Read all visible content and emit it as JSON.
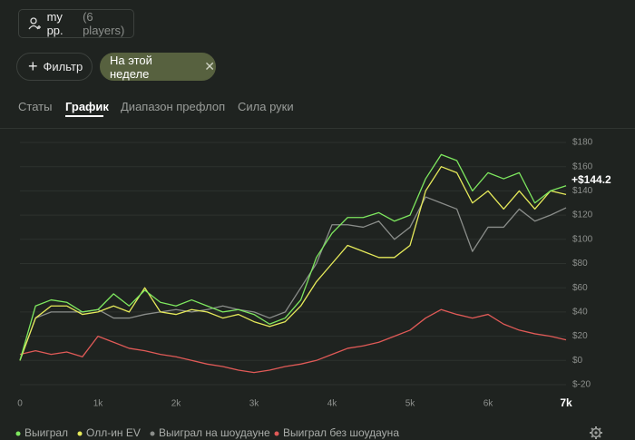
{
  "header": {
    "player_button": {
      "name": "my pp.",
      "count": "(6 players)"
    },
    "filter_button": "Фильтр",
    "period_chip": "На этой неделе"
  },
  "tabs": [
    "Статы",
    "График",
    "Диапазон префлоп",
    "Сила руки"
  ],
  "chart_data": {
    "type": "line",
    "annotation": "+$144.2",
    "x": [
      0,
      200,
      400,
      600,
      800,
      1000,
      1200,
      1400,
      1600,
      1800,
      2000,
      2200,
      2400,
      2600,
      2800,
      3000,
      3200,
      3400,
      3600,
      3800,
      4000,
      4200,
      4400,
      4600,
      4800,
      5000,
      5200,
      5400,
      5600,
      5800,
      6000,
      6200,
      6400,
      6600,
      6800,
      7000
    ],
    "xlim": [
      0,
      7000
    ],
    "xticks": [
      0,
      {
        "value": 1000,
        "label": "1k"
      },
      {
        "value": 2000,
        "label": "2k"
      },
      {
        "value": 3000,
        "label": "3k"
      },
      {
        "value": 4000,
        "label": "4k"
      },
      {
        "value": 5000,
        "label": "5k"
      },
      {
        "value": 6000,
        "label": "6k"
      },
      {
        "value": 7000,
        "label": "7k"
      }
    ],
    "ylim": [
      -20,
      180
    ],
    "yticks": [
      {
        "value": -20,
        "label": "$-20"
      },
      {
        "value": 0,
        "label": "$0"
      },
      {
        "value": 20,
        "label": "$20"
      },
      {
        "value": 40,
        "label": "$40"
      },
      {
        "value": 60,
        "label": "$60"
      },
      {
        "value": 80,
        "label": "$80"
      },
      {
        "value": 100,
        "label": "$100"
      },
      {
        "value": 120,
        "label": "$120"
      },
      {
        "value": 140,
        "label": "$140"
      },
      {
        "value": 160,
        "label": "$160"
      },
      {
        "value": 180,
        "label": "$180"
      }
    ],
    "grid": true,
    "series": [
      {
        "name": "Выиграл",
        "color": "#7ee85f",
        "values": [
          0,
          45,
          50,
          48,
          40,
          42,
          55,
          45,
          58,
          48,
          45,
          50,
          45,
          40,
          42,
          38,
          30,
          35,
          50,
          85,
          105,
          118,
          118,
          122,
          115,
          120,
          150,
          170,
          165,
          140,
          155,
          150,
          155,
          130,
          140,
          144.2
        ]
      },
      {
        "name": "Олл-ин EV",
        "color": "#e6ea5a",
        "values": [
          0,
          35,
          45,
          45,
          38,
          40,
          45,
          40,
          60,
          40,
          38,
          42,
          40,
          35,
          38,
          32,
          28,
          32,
          45,
          65,
          80,
          95,
          90,
          85,
          85,
          95,
          140,
          160,
          155,
          130,
          140,
          125,
          140,
          125,
          140,
          137
        ]
      },
      {
        "name": "Выиграл на шоудауне",
        "color": "#8a8d8a",
        "values": [
          0,
          35,
          40,
          40,
          40,
          42,
          35,
          35,
          38,
          40,
          42,
          40,
          42,
          45,
          42,
          40,
          35,
          40,
          60,
          80,
          112,
          112,
          110,
          115,
          100,
          110,
          135,
          130,
          125,
          90,
          110,
          110,
          125,
          115,
          120,
          126
        ]
      },
      {
        "name": "Выиграл без шоудауна",
        "color": "#e05a57",
        "values": [
          5,
          8,
          5,
          7,
          3,
          20,
          15,
          10,
          8,
          5,
          3,
          0,
          -3,
          -5,
          -8,
          -10,
          -8,
          -5,
          -3,
          0,
          5,
          10,
          12,
          15,
          20,
          25,
          35,
          42,
          38,
          35,
          38,
          30,
          25,
          22,
          20,
          17
        ]
      }
    ]
  }
}
